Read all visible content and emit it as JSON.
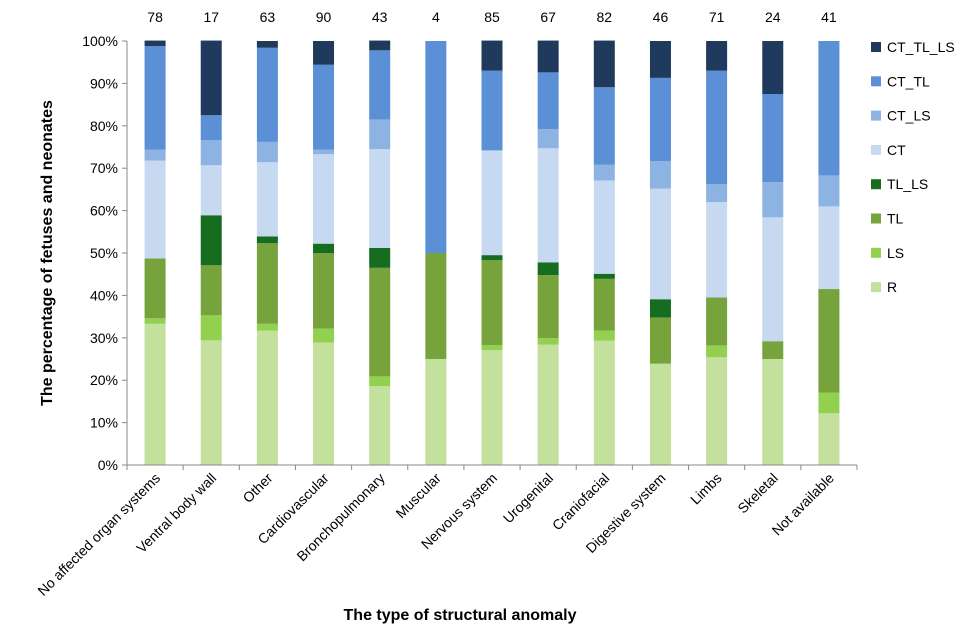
{
  "chart_data": {
    "type": "bar",
    "stacked": true,
    "normalized_percent": true,
    "xlabel": "The type of structural anomaly",
    "ylabel": "The percentage  of fetuses and neonates",
    "ylim": [
      0,
      100
    ],
    "yticks": [
      "0%",
      "10%",
      "20%",
      "30%",
      "40%",
      "50%",
      "60%",
      "70%",
      "80%",
      "90%",
      "100%"
    ],
    "grid": false,
    "legend_position": "right",
    "categories": [
      "No affected organ systems",
      "Ventral body wall",
      "Other",
      "Cardiovascular",
      "Bronchopulmonary",
      "Muscular",
      "Nervous system",
      "Urogenital",
      "Craniofacial",
      "Digestive system",
      "Limbs",
      "Skeletal",
      "Not available"
    ],
    "counts": [
      "78",
      "17",
      "63",
      "90",
      "43",
      "4",
      "85",
      "67",
      "82",
      "46",
      "71",
      "24",
      "41"
    ],
    "series": [
      {
        "name": "R",
        "color": "#c3e09c",
        "values": [
          33.3,
          29.4,
          31.7,
          28.9,
          18.6,
          25.0,
          27.1,
          28.4,
          29.3,
          23.9,
          25.4,
          25.0,
          12.2
        ]
      },
      {
        "name": "LS",
        "color": "#92d050",
        "values": [
          1.3,
          5.9,
          1.6,
          3.3,
          2.3,
          0,
          1.2,
          1.5,
          2.4,
          0,
          2.8,
          0,
          4.9
        ]
      },
      {
        "name": "TL",
        "color": "#77a33d",
        "values": [
          14.1,
          11.8,
          19.0,
          17.8,
          25.6,
          25.0,
          20.0,
          14.9,
          12.2,
          10.9,
          11.3,
          4.2,
          24.4
        ]
      },
      {
        "name": "TL_LS",
        "color": "#166d20",
        "values": [
          0,
          11.8,
          1.6,
          2.2,
          4.7,
          0,
          1.2,
          3.0,
          1.2,
          4.3,
          0,
          0,
          0
        ]
      },
      {
        "name": "CT",
        "color": "#c6d9f1",
        "values": [
          23.1,
          11.8,
          17.5,
          21.1,
          23.3,
          0,
          24.7,
          26.9,
          22.0,
          26.1,
          22.5,
          29.2,
          19.5
        ]
      },
      {
        "name": "CT_LS",
        "color": "#8db3e2",
        "values": [
          2.6,
          5.9,
          4.8,
          1.1,
          7.0,
          0,
          0,
          4.5,
          3.7,
          6.5,
          4.2,
          8.3,
          7.3
        ]
      },
      {
        "name": "CT_TL",
        "color": "#5b8fd6",
        "values": [
          24.4,
          5.9,
          22.2,
          20.0,
          16.3,
          50.0,
          18.8,
          13.4,
          18.3,
          19.6,
          26.8,
          20.8,
          31.7
        ]
      },
      {
        "name": "CT_TL_LS",
        "color": "#1f3a5c",
        "values": [
          1.3,
          17.6,
          1.6,
          5.6,
          2.3,
          0,
          7.1,
          7.5,
          11.0,
          8.7,
          7.0,
          12.5,
          0
        ]
      }
    ]
  }
}
